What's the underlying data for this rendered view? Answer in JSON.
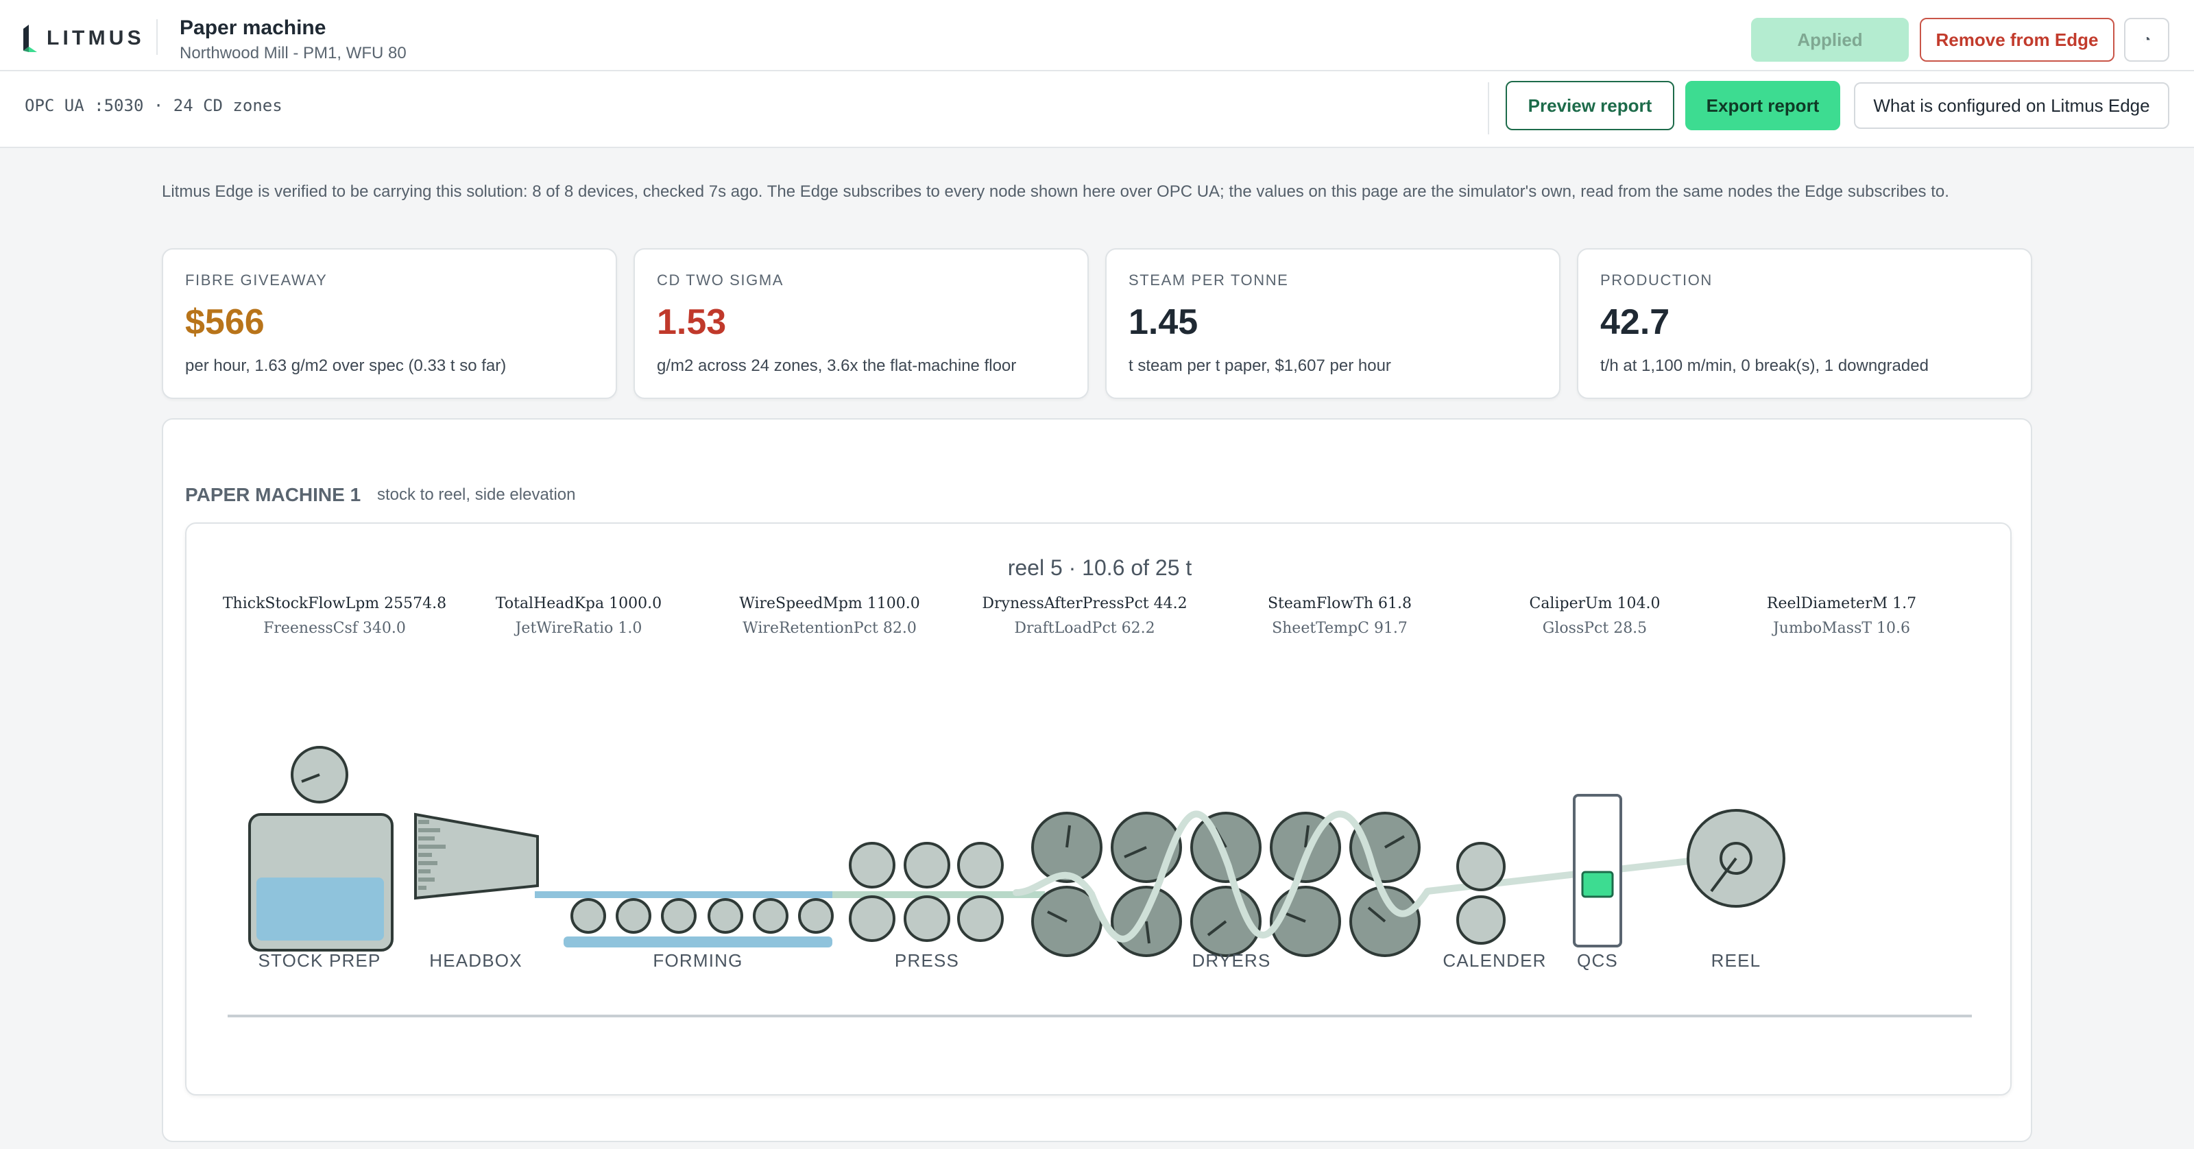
{
  "app": {
    "logo_text": "LITMUS",
    "title": "Paper machine",
    "subtitle": "Northwood Mill - PM1, WFU 80"
  },
  "header_actions": {
    "applied_label": "Applied",
    "remove_label": "Remove from Edge",
    "icon_glyph": "◔"
  },
  "connection": {
    "text": "OPC UA :5030 · 24 CD zones"
  },
  "toolbar": {
    "preview_label": "Preview report",
    "export_label": "Export report",
    "config_label": "What is configured on Litmus Edge"
  },
  "notice": "Litmus Edge is verified to be carrying this solution: 8 of 8 devices, checked 7s ago. The Edge subscribes to every node shown here over OPC UA; the values on this page are the simulator's own, read from the same nodes the Edge subscribes to.",
  "kpis": [
    {
      "label": "FIBRE GIVEAWAY",
      "value": "$566",
      "desc": "per hour, 1.63 g/m2 over spec (0.33 t so far)",
      "color": "#b8741a"
    },
    {
      "label": "CD TWO SIGMA",
      "value": "1.53",
      "desc": "g/m2 across 24 zones, 3.6x the flat-machine floor",
      "color": "#c0392b"
    },
    {
      "label": "STEAM PER TONNE",
      "value": "1.45",
      "desc": "t steam per t paper, $1,607 per hour",
      "color": "#1f2933"
    },
    {
      "label": "PRODUCTION",
      "value": "42.7",
      "desc": "t/h at 1,100 m/min, 0 break(s), 1 downgraded",
      "color": "#1f2933"
    }
  ],
  "machine": {
    "title": "PAPER MACHINE 1",
    "subtitle": "stock to reel, side elevation",
    "reel_status": "reel 5 · 10.6 of 25 t",
    "tags": [
      {
        "main": "ThickStockFlowLpm 25574.8",
        "sub": "FreenessCsf 340.0"
      },
      {
        "main": "TotalHeadKpa 1000.0",
        "sub": "JetWireRatio 1.0"
      },
      {
        "main": "WireSpeedMpm 1100.0",
        "sub": "WireRetentionPct 82.0"
      },
      {
        "main": "DrynessAfterPressPct 44.2",
        "sub": "DraftLoadPct 62.2"
      },
      {
        "main": "SteamFlowTh 61.8",
        "sub": "SheetTempC 91.7"
      },
      {
        "main": "CaliperUm 104.0",
        "sub": "GlossPct 28.5"
      },
      {
        "main": "ReelDiameterM 1.7",
        "sub": "JumboMassT 10.6"
      }
    ],
    "stages": [
      "STOCK PREP",
      "HEADBOX",
      "FORMING",
      "PRESS",
      "DRYERS",
      "CALENDER",
      "QCS",
      "REEL"
    ]
  },
  "colors": {
    "accent": "#3ddc91",
    "dark_green": "#1d6b4a",
    "danger": "#c23b2c",
    "roll_fill": "#bfcac6",
    "dryer_fill": "#8a9a94",
    "water": "#8fc3dc",
    "web": "#cfe0d8"
  }
}
